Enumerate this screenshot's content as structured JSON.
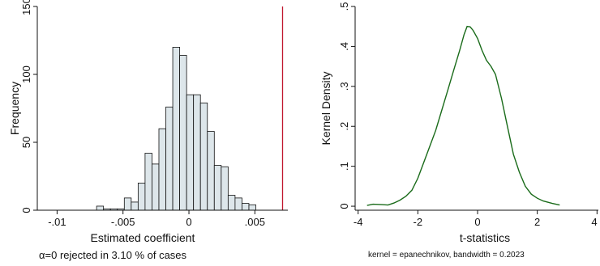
{
  "chart_data": [
    {
      "type": "bar",
      "xlabel": "Estimated coefficient",
      "ylabel": "Frequency",
      "note": "α=0 rejected in 3.10 % of cases",
      "xlim": [
        -0.0115,
        0.0075
      ],
      "ylim": [
        0,
        150
      ],
      "xticks": [
        -0.01,
        -0.005,
        0,
        0.005
      ],
      "xtick_labels": [
        "-.01",
        "-.005",
        "0",
        ".005"
      ],
      "yticks": [
        0,
        50,
        100,
        150
      ],
      "ytick_labels": [
        "0",
        "50",
        "100",
        "150"
      ],
      "bin_width": 0.000525,
      "bins": [
        {
          "x": -0.00674,
          "value": 3
        },
        {
          "x": -0.006215,
          "value": 1
        },
        {
          "x": -0.00569,
          "value": 1
        },
        {
          "x": -0.005165,
          "value": 1
        },
        {
          "x": -0.00464,
          "value": 9
        },
        {
          "x": -0.004115,
          "value": 6
        },
        {
          "x": -0.00359,
          "value": 20
        },
        {
          "x": -0.003065,
          "value": 42
        },
        {
          "x": -0.00254,
          "value": 34
        },
        {
          "x": -0.002015,
          "value": 60
        },
        {
          "x": -0.00149,
          "value": 76
        },
        {
          "x": -0.000965,
          "value": 120
        },
        {
          "x": -0.00044,
          "value": 114
        },
        {
          "x": 8.5e-05,
          "value": 85
        },
        {
          "x": 0.00061,
          "value": 85
        },
        {
          "x": 0.001135,
          "value": 79
        },
        {
          "x": 0.00166,
          "value": 58
        },
        {
          "x": 0.002185,
          "value": 33
        },
        {
          "x": 0.00271,
          "value": 32
        },
        {
          "x": 0.003235,
          "value": 11
        },
        {
          "x": 0.00376,
          "value": 9
        },
        {
          "x": 0.004285,
          "value": 5
        },
        {
          "x": 0.00481,
          "value": 4
        }
      ],
      "reference_line": {
        "x": 0.0071,
        "color": "#c0172e"
      },
      "bar_fill": "#dde6ea",
      "bar_stroke": "#111111"
    },
    {
      "type": "line",
      "xlabel": "t-statistics",
      "ylabel": "Kernel Density",
      "note": "kernel = epanechnikov, bandwidth = 0.2023",
      "xlim": [
        -4.1,
        4.1
      ],
      "ylim": [
        -0.01,
        0.5
      ],
      "xticks": [
        -4,
        -2,
        0,
        2,
        4
      ],
      "xtick_labels": [
        "-4",
        "-2",
        "0",
        "2",
        "4"
      ],
      "yticks": [
        0,
        0.1,
        0.2,
        0.3,
        0.4,
        0.5
      ],
      "ytick_labels": [
        "0",
        ".1",
        ".2",
        ".3",
        ".4",
        ".5"
      ],
      "line_color": "#1a6b1a",
      "series": [
        {
          "x": [
            -3.7,
            -3.5,
            -3.2,
            -3.0,
            -2.8,
            -2.6,
            -2.4,
            -2.2,
            -2.0,
            -1.8,
            -1.6,
            -1.4,
            -1.2,
            -1.0,
            -0.8,
            -0.6,
            -0.45,
            -0.35,
            -0.25,
            -0.15,
            0.0,
            0.15,
            0.3,
            0.45,
            0.6,
            0.8,
            1.0,
            1.2,
            1.4,
            1.6,
            1.8,
            2.0,
            2.2,
            2.5,
            2.75
          ],
          "y": [
            0.002,
            0.005,
            0.004,
            0.003,
            0.008,
            0.015,
            0.025,
            0.04,
            0.07,
            0.11,
            0.15,
            0.19,
            0.24,
            0.29,
            0.34,
            0.39,
            0.43,
            0.45,
            0.449,
            0.44,
            0.42,
            0.39,
            0.365,
            0.35,
            0.33,
            0.27,
            0.2,
            0.13,
            0.085,
            0.05,
            0.03,
            0.02,
            0.013,
            0.007,
            0.003
          ]
        }
      ]
    }
  ]
}
